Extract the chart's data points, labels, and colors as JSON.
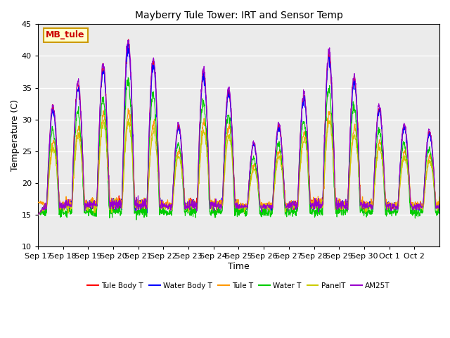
{
  "title": "Mayberry Tule Tower: IRT and Sensor Temp",
  "xlabel": "Time",
  "ylabel": "Temperature (C)",
  "ylim": [
    10,
    45
  ],
  "n_days": 16,
  "tick_labels": [
    "Sep 17",
    "Sep 18",
    "Sep 19",
    "Sep 20",
    "Sep 21",
    "Sep 22",
    "Sep 23",
    "Sep 24",
    "Sep 25",
    "Sep 26",
    "Sep 27",
    "Sep 28",
    "Sep 29",
    "Sep 30",
    "Oct 1",
    "Oct 2"
  ],
  "legend_entries": [
    "Tule Body T",
    "Water Body T",
    "Tule T",
    "Water T",
    "PanelT",
    "AM25T"
  ],
  "line_colors": [
    "#ff0000",
    "#0000ff",
    "#ff9900",
    "#00cc00",
    "#cccc00",
    "#9900cc"
  ],
  "annotation_text": "MB_tule",
  "annotation_color": "#cc0000",
  "annotation_bg": "#ffffcc",
  "annotation_border": "#cc9900",
  "bg_color": "#ebebeb",
  "grid_color": "#ffffff",
  "yticks": [
    10,
    15,
    20,
    25,
    30,
    35,
    40,
    45
  ]
}
